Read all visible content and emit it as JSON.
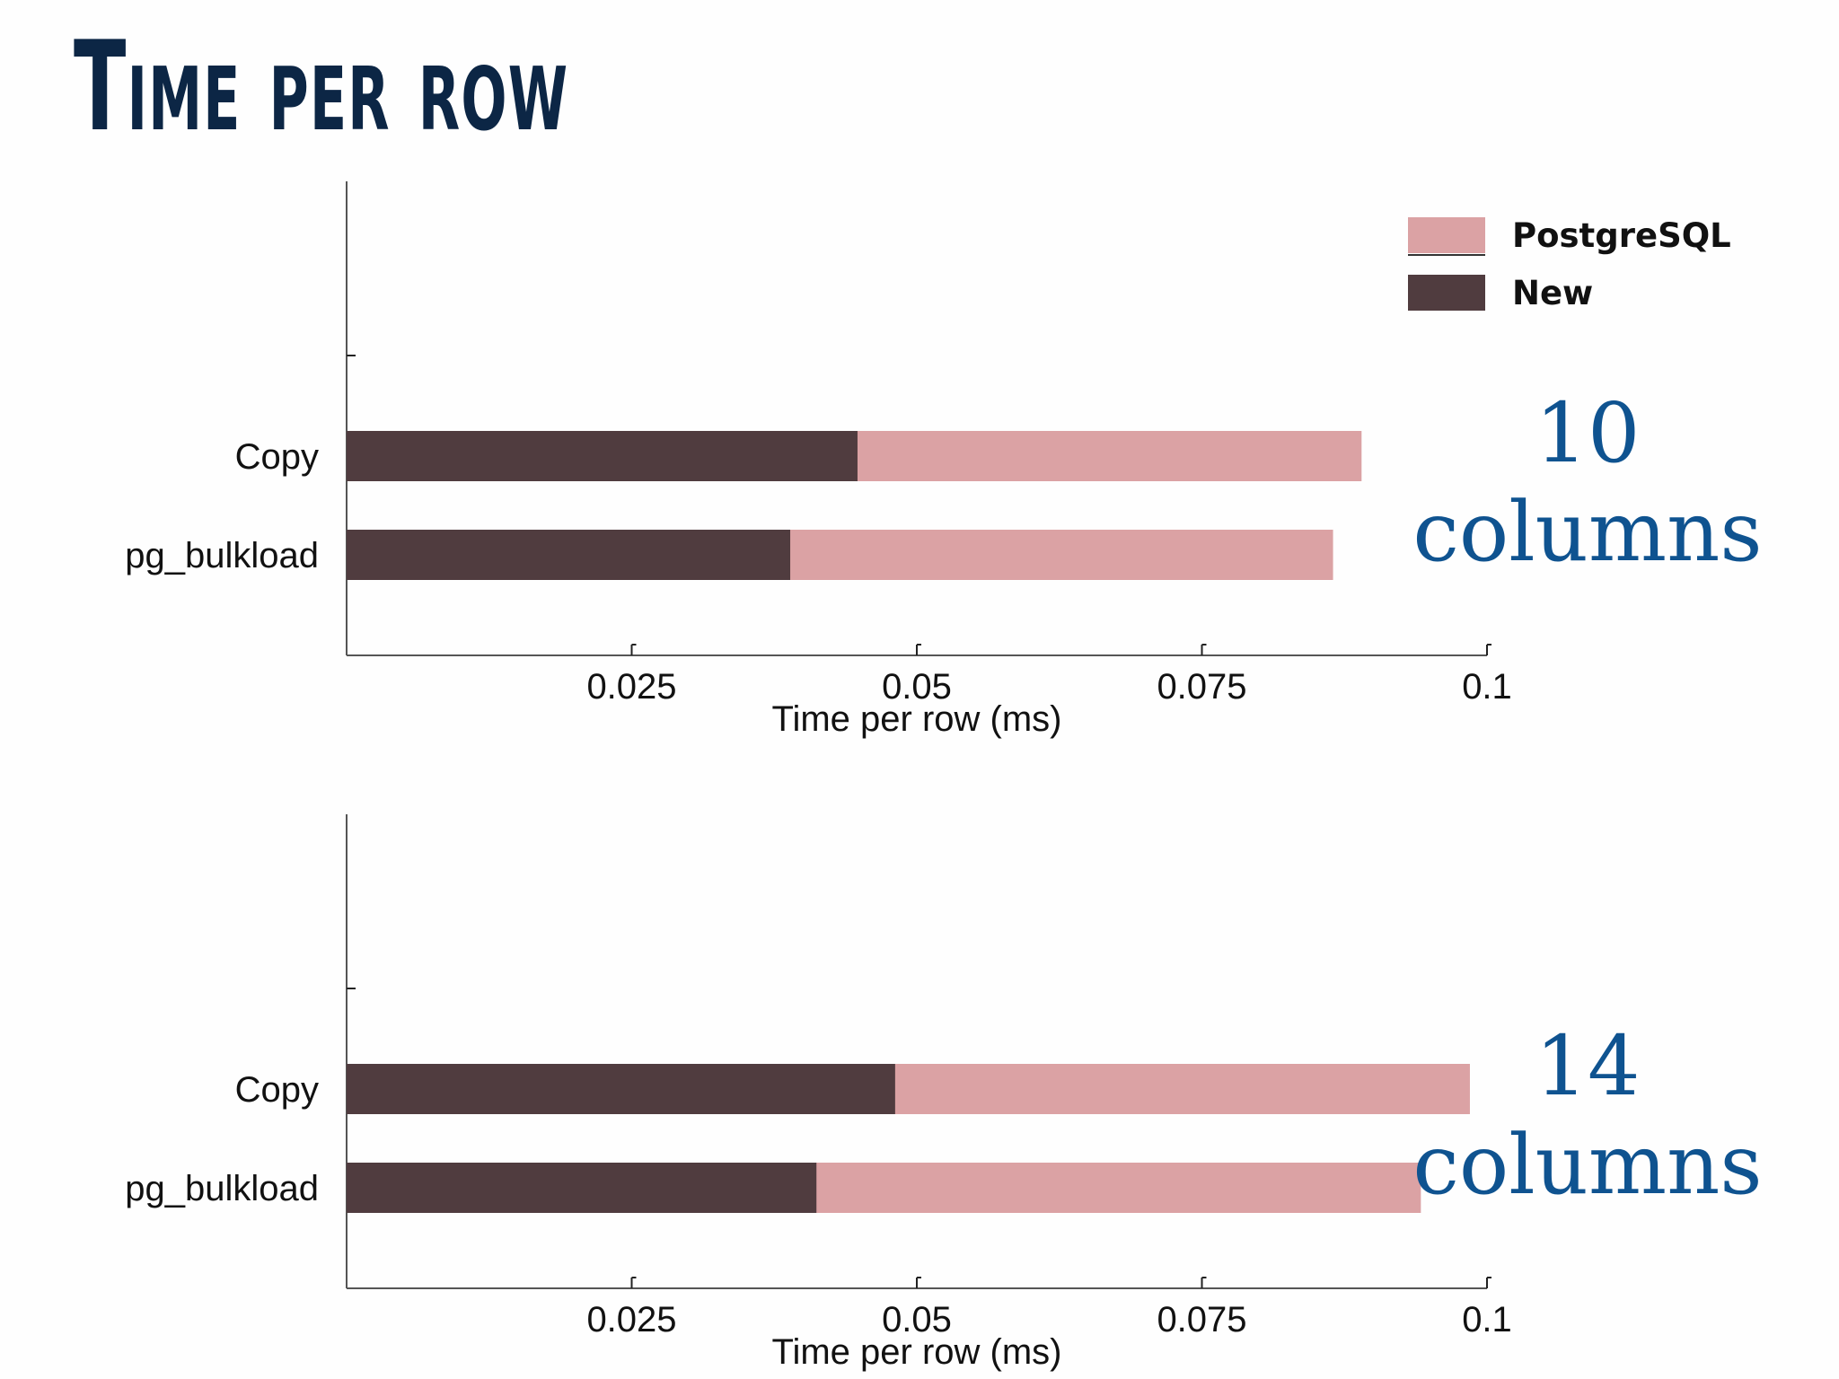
{
  "title": "Time per row",
  "colors": {
    "background": "#fefefe",
    "title": "#0c2645",
    "postgresql": "#dba2a4",
    "new": "#503c3f",
    "side_label": "#0f5390",
    "axis": "#555555"
  },
  "legend": {
    "placement": "top-right",
    "items": [
      {
        "label": "PostgreSQL",
        "color": "#dba2a4"
      },
      {
        "label": "New",
        "color": "#503c3f"
      }
    ]
  },
  "chart_data": [
    {
      "type": "bar",
      "orientation": "horizontal",
      "stacking": "overlay",
      "categories": [
        "Copy",
        "pg_bulkload"
      ],
      "series": [
        {
          "name": "PostgreSQL",
          "values": [
            0.089,
            0.0865
          ]
        },
        {
          "name": "New",
          "values": [
            0.0448,
            0.0389
          ]
        }
      ],
      "xlabel": "Time per row (ms)",
      "xlim": [
        0,
        0.1
      ],
      "xticks": [
        "0.025",
        "0.05",
        "0.075",
        "0.1"
      ],
      "grid": false,
      "side_label": [
        "10",
        "columns"
      ]
    },
    {
      "type": "bar",
      "orientation": "horizontal",
      "stacking": "overlay",
      "categories": [
        "Copy",
        "pg_bulkload"
      ],
      "series": [
        {
          "name": "PostgreSQL",
          "values": [
            0.0985,
            0.0942
          ]
        },
        {
          "name": "New",
          "values": [
            0.0481,
            0.0412
          ]
        }
      ],
      "xlabel": "Time per row (ms)",
      "xlim": [
        0,
        0.1
      ],
      "xticks": [
        "0.025",
        "0.05",
        "0.075",
        "0.1"
      ],
      "grid": false,
      "side_label": [
        "14",
        "columns"
      ]
    }
  ]
}
